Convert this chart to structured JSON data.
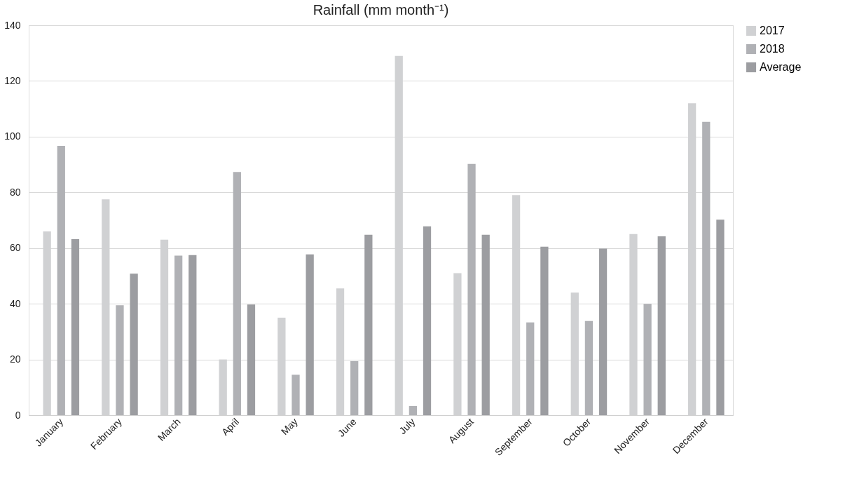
{
  "chart_data": {
    "type": "bar",
    "title": "Rainfall (mm month⁻¹)",
    "categories": [
      "January",
      "February",
      "March",
      "April",
      "May",
      "June",
      "July",
      "August",
      "September",
      "October",
      "November",
      "December"
    ],
    "series": [
      {
        "name": "2017",
        "color": "#d0d1d3",
        "values": [
          66,
          77.5,
          63,
          20,
          35,
          45.5,
          129,
          51,
          79,
          44,
          65,
          112
        ]
      },
      {
        "name": "2018",
        "color": "#b0b1b5",
        "values": [
          96.7,
          39.5,
          57.3,
          87.3,
          14.5,
          19.4,
          3.3,
          90.2,
          33.3,
          33.8,
          40,
          105.3
        ]
      },
      {
        "name": "Average",
        "color": "#9c9da1",
        "values": [
          63.2,
          50.8,
          57.5,
          39.7,
          57.7,
          64.8,
          67.8,
          64.8,
          60.5,
          59.8,
          64.2,
          70.2
        ]
      }
    ],
    "ylim": [
      0,
      140
    ],
    "yticks": [
      0,
      20,
      40,
      60,
      80,
      100,
      120,
      140
    ],
    "grid": "y",
    "legend": "right"
  }
}
